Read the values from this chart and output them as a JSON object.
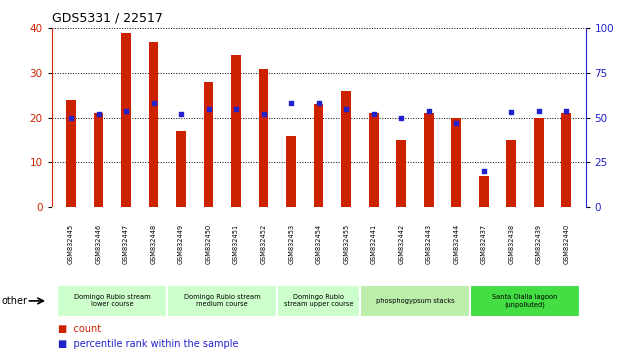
{
  "title": "GDS5331 / 22517",
  "samples": [
    "GSM832445",
    "GSM832446",
    "GSM832447",
    "GSM832448",
    "GSM832449",
    "GSM832450",
    "GSM832451",
    "GSM832452",
    "GSM832453",
    "GSM832454",
    "GSM832455",
    "GSM832441",
    "GSM832442",
    "GSM832443",
    "GSM832444",
    "GSM832437",
    "GSM832438",
    "GSM832439",
    "GSM832440"
  ],
  "counts": [
    24,
    21,
    39,
    37,
    17,
    28,
    34,
    31,
    16,
    23,
    26,
    21,
    15,
    21,
    20,
    7,
    15,
    20,
    21
  ],
  "percentile_ranks": [
    50,
    52,
    54,
    58,
    52,
    55,
    55,
    52,
    58,
    58,
    55,
    52,
    50,
    54,
    47,
    20,
    53,
    54,
    54
  ],
  "bar_color": "#cc2200",
  "dot_color": "#2222cc",
  "ylim_left": [
    0,
    40
  ],
  "ylim_right": [
    0,
    100
  ],
  "yticks_left": [
    0,
    10,
    20,
    30,
    40
  ],
  "yticks_right": [
    0,
    25,
    50,
    75,
    100
  ],
  "groups": [
    {
      "label": "Domingo Rubio stream\nlower course",
      "start": 0,
      "end": 3,
      "color": "#ccffcc"
    },
    {
      "label": "Domingo Rubio stream\nmedium course",
      "start": 4,
      "end": 7,
      "color": "#ccffcc"
    },
    {
      "label": "Domingo Rubio\nstream upper course",
      "start": 8,
      "end": 10,
      "color": "#ccffcc"
    },
    {
      "label": "phosphogypsum stacks",
      "start": 11,
      "end": 14,
      "color": "#bbeeaa"
    },
    {
      "label": "Santa Olalla lagoon\n(unpolluted)",
      "start": 15,
      "end": 18,
      "color": "#44dd44"
    }
  ],
  "legend_count_label": "count",
  "legend_pct_label": "percentile rank within the sample",
  "other_label": "other",
  "tick_area_color": "#cccccc",
  "plot_bg": "#ffffff"
}
